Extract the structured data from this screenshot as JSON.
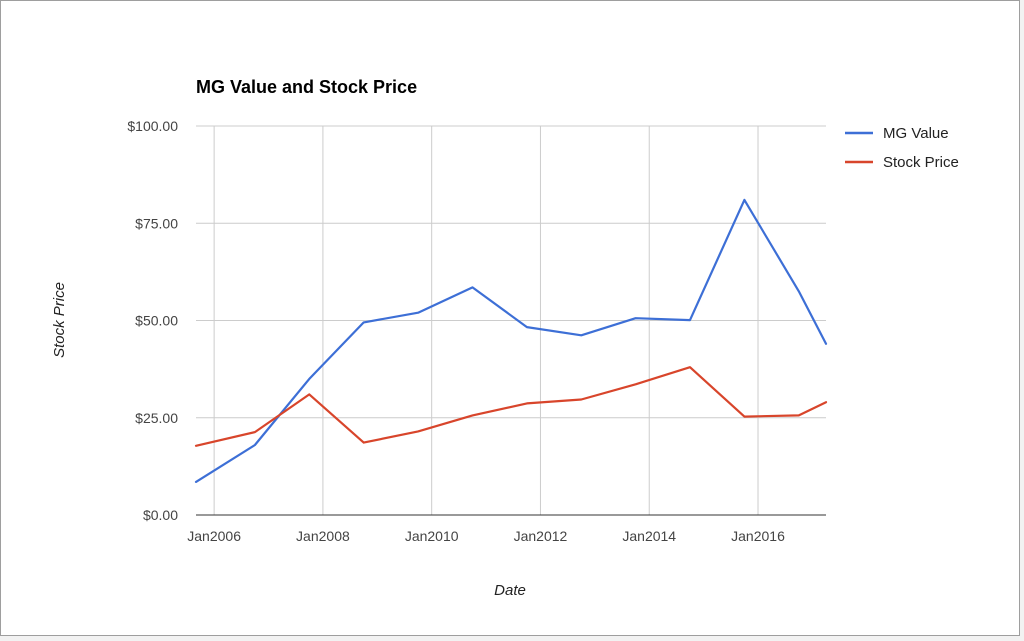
{
  "chart_data": {
    "type": "line",
    "title": "MG Value and Stock Price",
    "xlabel": "Date",
    "ylabel": "Stock Price",
    "x_tick_labels": [
      "Jan2006",
      "Jan2008",
      "Jan2010",
      "Jan2012",
      "Jan2014",
      "Jan2016"
    ],
    "x_ticks": [
      "2006-01",
      "2008-01",
      "2010-01",
      "2012-01",
      "2014-01",
      "2016-01"
    ],
    "y_tick_labels": [
      "$0.00",
      "$25.00",
      "$50.00",
      "$75.00",
      "$100.00"
    ],
    "ylim": [
      0,
      100
    ],
    "xlim": [
      "2005-09",
      "2017-04"
    ],
    "grid": true,
    "legend_position": "right",
    "x": [
      "2005-09",
      "2006-10",
      "2007-10",
      "2008-10",
      "2009-10",
      "2010-10",
      "2011-10",
      "2012-10",
      "2013-10",
      "2014-10",
      "2015-10",
      "2016-10",
      "2017-04"
    ],
    "series": [
      {
        "name": "MG Value",
        "color": "#3d6fd6",
        "values": [
          8.5,
          18,
          35,
          49.5,
          52,
          58.5,
          48.3,
          46.2,
          50.6,
          50.1,
          81,
          57.5,
          44
        ]
      },
      {
        "name": "Stock Price",
        "color": "#d8452b",
        "values": [
          17.8,
          21.3,
          31,
          18.6,
          21.5,
          25.6,
          28.7,
          29.7,
          33.6,
          38,
          25.3,
          25.6,
          29
        ]
      }
    ]
  }
}
